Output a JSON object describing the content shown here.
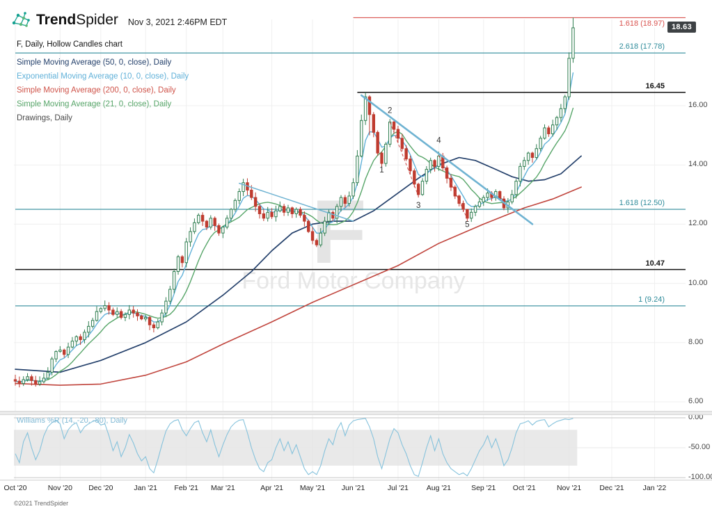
{
  "header": {
    "brand_bold": "Trend",
    "brand_light": "Spider",
    "timestamp": "Nov 3, 2021 2:46PM EDT"
  },
  "legend": {
    "title": "F, Daily, Hollow Candles chart",
    "items": [
      {
        "label": "Simple Moving Average (50, 0, close), Daily",
        "color": "#24406b"
      },
      {
        "label": "Exponential Moving Average (10, 0, close), Daily",
        "color": "#5fb0d8"
      },
      {
        "label": "Simple Moving Average (200, 0, close), Daily",
        "color": "#cf5349"
      },
      {
        "label": "Simple Moving Average (21, 0, close), Daily",
        "color": "#56a568"
      },
      {
        "label": "Drawings, Daily",
        "color": "#4a4a4a"
      }
    ]
  },
  "watermark": {
    "symbol": "F",
    "name": "Ford Motor Company"
  },
  "footer": {
    "copyright": "©2021 TrendSpider"
  },
  "chart_data": {
    "type": "candlestick",
    "symbol": "F",
    "timeframe": "Daily",
    "style": "Hollow Candles",
    "last_price": "18.63",
    "last_price_value": 18.63,
    "colors": {
      "candle_up": "#2e7d4f",
      "candle_down": "#bf3b2f",
      "fib": "#2e8b9a",
      "fib_red": "#d9534f",
      "black_level": "#111111",
      "drawing_blue": "#6fb3d2",
      "dashed_red": "#cc4b4b"
    },
    "x_axis": {
      "months": [
        {
          "label": "Oct '20",
          "idx": 0
        },
        {
          "label": "Nov '20",
          "idx": 11
        },
        {
          "label": "Dec '20",
          "idx": 21
        },
        {
          "label": "Jan '21",
          "idx": 32
        },
        {
          "label": "Feb '21",
          "idx": 42
        },
        {
          "label": "Mar '21",
          "idx": 51
        },
        {
          "label": "Apr '21",
          "idx": 63
        },
        {
          "label": "May '21",
          "idx": 73
        },
        {
          "label": "Jun '21",
          "idx": 83
        },
        {
          "label": "Jul '21",
          "idx": 94
        },
        {
          "label": "Aug '21",
          "idx": 104
        },
        {
          "label": "Sep '21",
          "idx": 115
        },
        {
          "label": "Oct '21",
          "idx": 125
        },
        {
          "label": "Nov '21",
          "idx": 136
        },
        {
          "label": "Dec '21",
          "idx": 146.5
        },
        {
          "label": "Jan '22",
          "idx": 157
        }
      ]
    },
    "y_axis": {
      "ticks": [
        {
          "value": 16,
          "label": "16.00"
        },
        {
          "value": 14,
          "label": "14.00"
        },
        {
          "value": 12,
          "label": "12.00"
        },
        {
          "value": 10,
          "label": "10.00"
        },
        {
          "value": 8,
          "label": "8.00"
        },
        {
          "value": 6,
          "label": "6.00"
        }
      ]
    },
    "closes": [
      6.7,
      6.62,
      6.75,
      6.85,
      6.72,
      6.6,
      6.68,
      6.8,
      7.0,
      7.45,
      7.7,
      7.75,
      7.6,
      7.85,
      8.05,
      8.2,
      8.1,
      8.35,
      8.55,
      8.75,
      9.05,
      9.15,
      9.25,
      9.1,
      8.95,
      9.05,
      8.85,
      8.95,
      9.1,
      9.0,
      8.9,
      8.8,
      8.85,
      8.6,
      8.5,
      8.7,
      9.0,
      9.4,
      9.8,
      10.4,
      10.9,
      10.7,
      11.4,
      11.75,
      12.05,
      12.3,
      12.1,
      11.9,
      12.2,
      11.95,
      11.7,
      11.9,
      12.2,
      12.5,
      12.8,
      13.1,
      13.4,
      13.15,
      12.9,
      12.6,
      12.35,
      12.2,
      12.4,
      12.25,
      12.45,
      12.6,
      12.4,
      12.55,
      12.35,
      12.5,
      12.3,
      12.1,
      11.75,
      11.45,
      11.3,
      11.7,
      12.1,
      12.4,
      12.2,
      12.6,
      12.9,
      12.7,
      12.95,
      13.4,
      14.3,
      15.5,
      16.3,
      15.7,
      15.1,
      14.4,
      14.05,
      14.7,
      15.45,
      15.2,
      14.9,
      14.55,
      14.2,
      13.8,
      13.35,
      13.0,
      13.45,
      13.85,
      14.15,
      13.95,
      14.3,
      13.9,
      13.55,
      13.25,
      12.95,
      12.7,
      12.5,
      12.2,
      12.4,
      12.6,
      12.75,
      12.9,
      13.05,
      12.9,
      13.1,
      12.85,
      12.55,
      12.75,
      13.0,
      13.45,
      13.95,
      14.15,
      14.4,
      14.25,
      14.55,
      14.9,
      15.25,
      15.05,
      15.35,
      15.6,
      15.9,
      16.3,
      17.6,
      18.63
    ],
    "wick_overrides": {
      "83": [
        13.55,
        12.85
      ],
      "84": [
        14.5,
        13.3
      ],
      "85": [
        15.7,
        14.25
      ],
      "86": [
        16.45,
        15.35
      ],
      "87": [
        16.35,
        15.0
      ],
      "92": [
        15.55,
        14.6
      ],
      "99": [
        13.4,
        12.9
      ],
      "104": [
        14.45,
        13.8
      ],
      "111": [
        12.5,
        12.08
      ],
      "136": [
        17.8,
        16.2
      ],
      "137": [
        18.97,
        17.45
      ]
    },
    "levels": [
      {
        "label": "1.618 (18.97)",
        "value": 18.97,
        "color": "#d9534f",
        "from_idx": 83,
        "bold": false,
        "label_below": true
      },
      {
        "label": "2.618 (17.78)",
        "value": 17.78,
        "color": "#2e8b9a",
        "from_idx": 0,
        "bold": false,
        "label_below": false
      },
      {
        "label": "16.45",
        "value": 16.45,
        "color": "#111111",
        "from_idx": 84,
        "bold": true,
        "label_below": false
      },
      {
        "label": "1.618 (12.50)",
        "value": 12.5,
        "color": "#2e8b9a",
        "from_idx": 0,
        "bold": false,
        "label_below": false
      },
      {
        "label": "10.47",
        "value": 10.47,
        "color": "#111111",
        "from_idx": 0,
        "bold": true,
        "label_below": false
      },
      {
        "label": "1 (9.24)",
        "value": 9.24,
        "color": "#2e8b9a",
        "from_idx": 0,
        "bold": false,
        "label_below": false
      }
    ],
    "moving_averages": [
      {
        "name": "SMA200",
        "color": "#c0443c",
        "width": 1.6,
        "anchors": [
          [
            0,
            6.62
          ],
          [
            11,
            6.56
          ],
          [
            21,
            6.6
          ],
          [
            32,
            6.9
          ],
          [
            42,
            7.35
          ],
          [
            51,
            7.95
          ],
          [
            63,
            8.7
          ],
          [
            73,
            9.36
          ],
          [
            83,
            9.95
          ],
          [
            94,
            10.6
          ],
          [
            104,
            11.35
          ],
          [
            115,
            12.0
          ],
          [
            125,
            12.55
          ],
          [
            132,
            12.85
          ],
          [
            139,
            13.25
          ]
        ]
      },
      {
        "name": "SMA50",
        "color": "#24406b",
        "width": 1.7,
        "anchors": [
          [
            0,
            7.1
          ],
          [
            11,
            7.0
          ],
          [
            21,
            7.4
          ],
          [
            32,
            8.0
          ],
          [
            42,
            8.7
          ],
          [
            51,
            9.6
          ],
          [
            58,
            10.4
          ],
          [
            63,
            11.1
          ],
          [
            68,
            11.7
          ],
          [
            73,
            12.0
          ],
          [
            78,
            12.1
          ],
          [
            83,
            12.1
          ],
          [
            88,
            12.45
          ],
          [
            94,
            13.05
          ],
          [
            99,
            13.55
          ],
          [
            104,
            14.0
          ],
          [
            109,
            14.25
          ],
          [
            113,
            14.15
          ],
          [
            118,
            13.85
          ],
          [
            122,
            13.6
          ],
          [
            126,
            13.45
          ],
          [
            130,
            13.5
          ],
          [
            134,
            13.7
          ],
          [
            139,
            14.3
          ]
        ]
      },
      {
        "name": "SMA21",
        "color": "#56a568",
        "width": 1.4,
        "period_points": 10
      },
      {
        "name": "EMA10",
        "color": "#5fb0d8",
        "width": 1.4,
        "period_points": 5
      }
    ],
    "drawings": {
      "trendlines": [
        {
          "from": [
            85,
            16.35
          ],
          "to": [
            127,
            12.0
          ],
          "width": 2.6
        },
        {
          "from": [
            55,
            13.38
          ],
          "to": [
            83,
            12.1
          ],
          "width": 1.5
        }
      ],
      "dashed": [
        {
          "from": [
            92,
            15.45
          ],
          "to": [
            99,
            12.95
          ]
        },
        {
          "from": [
            104,
            14.32
          ],
          "to": [
            111,
            12.18
          ]
        }
      ],
      "wave_labels": [
        {
          "text": "1",
          "idx": 90,
          "price": 13.75
        },
        {
          "text": "2",
          "idx": 92,
          "price": 15.75
        },
        {
          "text": "3",
          "idx": 99,
          "price": 12.55
        },
        {
          "text": "4",
          "idx": 104,
          "price": 14.75
        },
        {
          "text": "5",
          "idx": 111,
          "price": 11.9
        }
      ]
    },
    "indicator": {
      "label": "Williams %R (14, -20, -80), Daily",
      "color": "#85c2dc",
      "label_color": "#7fb8d4",
      "band": [
        -20,
        -80
      ],
      "ticks": [
        {
          "value": 0,
          "label": "0.00"
        },
        {
          "value": -50,
          "label": "-50.00"
        },
        {
          "value": -100,
          "label": "-100.00"
        }
      ],
      "values": [
        -60,
        -75,
        -40,
        -25,
        -50,
        -70,
        -55,
        -30,
        -15,
        -8,
        -5,
        -10,
        -35,
        -20,
        -12,
        -8,
        -25,
        -15,
        -10,
        -6,
        -4,
        -12,
        -10,
        -30,
        -55,
        -40,
        -65,
        -50,
        -28,
        -42,
        -60,
        -72,
        -65,
        -85,
        -92,
        -70,
        -45,
        -22,
        -10,
        -5,
        -3,
        -20,
        -30,
        -18,
        -8,
        -5,
        -25,
        -40,
        -20,
        -45,
        -65,
        -45,
        -28,
        -15,
        -8,
        -4,
        -3,
        -25,
        -50,
        -70,
        -85,
        -90,
        -75,
        -70,
        -50,
        -35,
        -55,
        -40,
        -60,
        -45,
        -65,
        -85,
        -95,
        -90,
        -95,
        -80,
        -55,
        -35,
        -45,
        -20,
        -8,
        -30,
        -12,
        -5,
        -3,
        -2,
        -1,
        -15,
        -35,
        -65,
        -85,
        -60,
        -35,
        -18,
        -25,
        -45,
        -60,
        -80,
        -95,
        -98,
        -75,
        -50,
        -30,
        -55,
        -35,
        -60,
        -75,
        -85,
        -90,
        -95,
        -92,
        -97,
        -85,
        -70,
        -55,
        -45,
        -30,
        -50,
        -35,
        -55,
        -80,
        -70,
        -50,
        -25,
        -10,
        -8,
        -5,
        -12,
        -6,
        -4,
        -3,
        -15,
        -10,
        -6,
        -4,
        -2,
        -3,
        -1
      ]
    }
  }
}
